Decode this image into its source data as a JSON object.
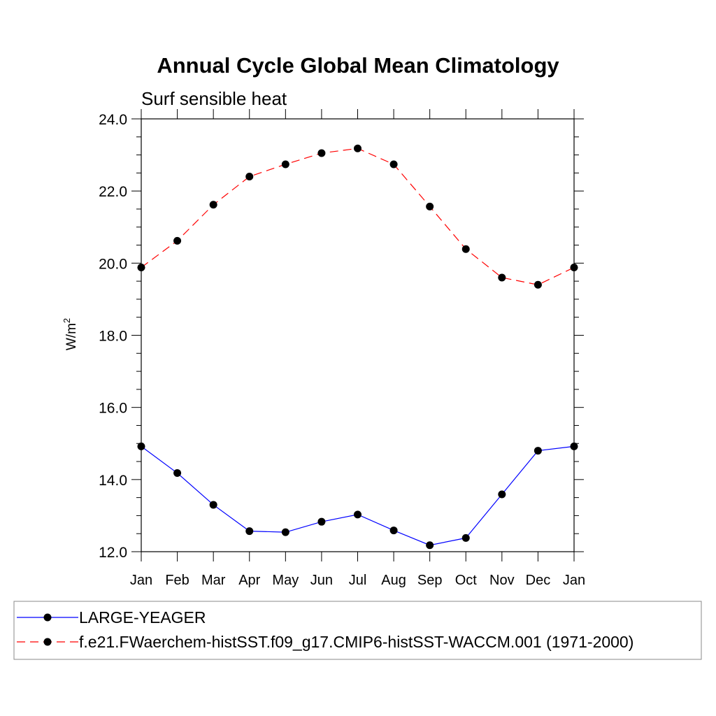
{
  "chart_data": {
    "type": "line",
    "title": "Annual Cycle Global Mean Climatology",
    "subtitle": "Surf sensible heat",
    "ylabel_base": "W/m",
    "ylabel_sup": "2",
    "xlabel": "",
    "ylim": [
      12.0,
      24.0
    ],
    "yticks": [
      "12.0",
      "14.0",
      "16.0",
      "18.0",
      "20.0",
      "22.0",
      "24.0"
    ],
    "categories": [
      "Jan",
      "Feb",
      "Mar",
      "Apr",
      "May",
      "Jun",
      "Jul",
      "Aug",
      "Sep",
      "Oct",
      "Nov",
      "Dec",
      "Jan"
    ],
    "series": [
      {
        "name": "LARGE-YEAGER",
        "color": "#0000ff",
        "dash": "solid",
        "values": [
          14.92,
          14.18,
          13.3,
          12.57,
          12.54,
          12.83,
          13.03,
          12.59,
          12.18,
          12.38,
          13.59,
          14.8,
          14.92
        ]
      },
      {
        "name": "f.e21.FWaerchem-histSST.f09_g17.CMIP6-histSST-WACCM.001 (1971-2000)",
        "color": "#ff0000",
        "dash": "dashed",
        "values": [
          19.88,
          20.62,
          21.62,
          22.4,
          22.74,
          23.05,
          23.18,
          22.74,
          21.57,
          20.39,
          19.6,
          19.4,
          19.88
        ]
      }
    ]
  }
}
